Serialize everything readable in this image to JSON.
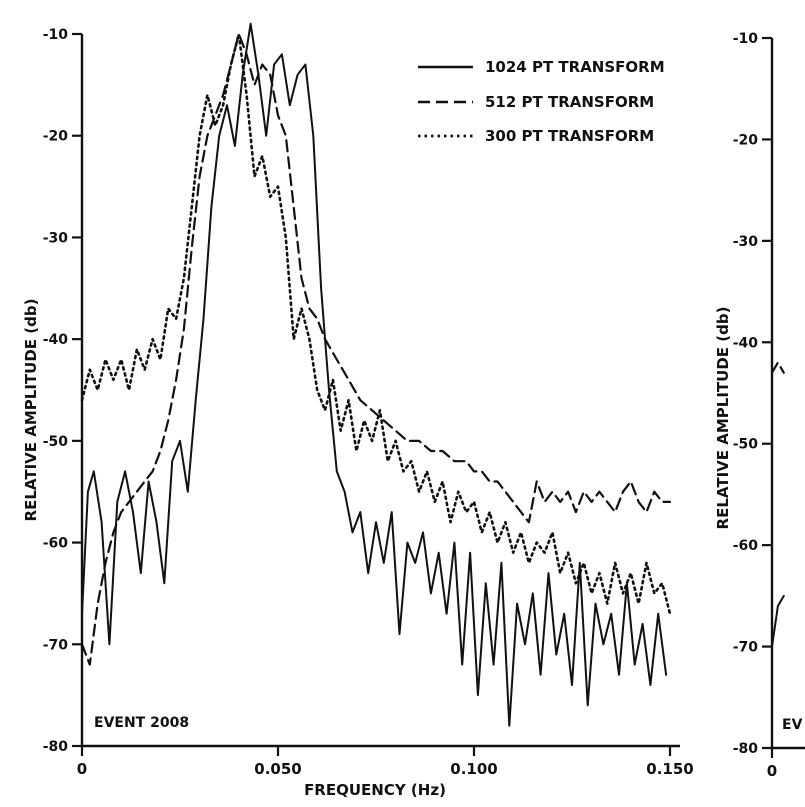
{
  "chart_data": [
    {
      "type": "line",
      "title": "",
      "xlabel": "FREQUENCY (Hz)",
      "ylabel": "RELATIVE AMPLITUDE (db)",
      "xlim": [
        0,
        0.15
      ],
      "ylim": [
        -80,
        -10
      ],
      "x_ticks": [
        "0",
        "0.050",
        "0.100",
        "0.150"
      ],
      "y_ticks": [
        "-10",
        "-20",
        "-30",
        "-40",
        "-50",
        "-60",
        "-70",
        "-80"
      ],
      "annotation": "EVENT 2008",
      "legend": {
        "position": "top-right",
        "entries": [
          "1024 PT TRANSFORM",
          "512 PT TRANSFORM",
          "300 PT TRANSFORM"
        ]
      },
      "series": [
        {
          "name": "1024 PT TRANSFORM",
          "style": "solid",
          "x": [
            0.0,
            0.0015,
            0.003,
            0.005,
            0.007,
            0.009,
            0.011,
            0.013,
            0.015,
            0.017,
            0.019,
            0.021,
            0.023,
            0.025,
            0.027,
            0.029,
            0.031,
            0.033,
            0.035,
            0.037,
            0.039,
            0.041,
            0.043,
            0.045,
            0.047,
            0.049,
            0.051,
            0.053,
            0.055,
            0.057,
            0.059,
            0.061,
            0.063,
            0.065,
            0.067,
            0.069,
            0.071,
            0.073,
            0.075,
            0.077,
            0.079,
            0.081,
            0.083,
            0.085,
            0.087,
            0.089,
            0.091,
            0.093,
            0.095,
            0.097,
            0.099,
            0.101,
            0.103,
            0.105,
            0.107,
            0.109,
            0.111,
            0.113,
            0.115,
            0.117,
            0.119,
            0.121,
            0.123,
            0.125,
            0.127,
            0.129,
            0.131,
            0.133,
            0.135,
            0.137,
            0.139,
            0.141,
            0.143,
            0.145,
            0.147,
            0.149
          ],
          "y": [
            -67,
            -55,
            -53,
            -58,
            -70,
            -56,
            -53,
            -57,
            -63,
            -54,
            -58,
            -64,
            -52,
            -50,
            -55,
            -46,
            -38,
            -27,
            -20,
            -17,
            -21,
            -14,
            -9,
            -14,
            -20,
            -13,
            -12,
            -17,
            -14,
            -13,
            -20,
            -35,
            -45,
            -53,
            -55,
            -59,
            -57,
            -63,
            -58,
            -62,
            -57,
            -69,
            -60,
            -62,
            -59,
            -65,
            -61,
            -67,
            -60,
            -72,
            -61,
            -75,
            -64,
            -72,
            -62,
            -78,
            -66,
            -70,
            -65,
            -73,
            -63,
            -71,
            -67,
            -74,
            -62,
            -76,
            -66,
            -70,
            -67,
            -73,
            -64,
            -72,
            -68,
            -74,
            -67,
            -73
          ]
        },
        {
          "name": "512 PT TRANSFORM",
          "style": "dashed",
          "x": [
            0.0,
            0.002,
            0.004,
            0.006,
            0.008,
            0.01,
            0.012,
            0.014,
            0.016,
            0.018,
            0.02,
            0.022,
            0.024,
            0.026,
            0.028,
            0.03,
            0.032,
            0.034,
            0.036,
            0.038,
            0.04,
            0.042,
            0.044,
            0.046,
            0.048,
            0.05,
            0.052,
            0.054,
            0.056,
            0.058,
            0.06,
            0.062,
            0.065,
            0.068,
            0.071,
            0.074,
            0.077,
            0.08,
            0.083,
            0.086,
            0.089,
            0.092,
            0.095,
            0.098,
            0.1,
            0.102,
            0.104,
            0.106,
            0.108,
            0.11,
            0.112,
            0.114,
            0.116,
            0.118,
            0.12,
            0.122,
            0.124,
            0.126,
            0.128,
            0.13,
            0.132,
            0.134,
            0.136,
            0.138,
            0.14,
            0.142,
            0.144,
            0.146,
            0.148,
            0.15
          ],
          "y": [
            -70,
            -72,
            -66,
            -62,
            -59,
            -57,
            -56,
            -55,
            -54,
            -53,
            -51,
            -48,
            -44,
            -39,
            -31,
            -24,
            -20,
            -18,
            -16,
            -13,
            -10,
            -12,
            -15,
            -13,
            -14,
            -18,
            -20,
            -27,
            -34,
            -37,
            -38,
            -40,
            -42,
            -44,
            -46,
            -47,
            -48,
            -49,
            -50,
            -50,
            -51,
            -51,
            -52,
            -52,
            -53,
            -53,
            -54,
            -54,
            -55,
            -56,
            -57,
            -58,
            -54,
            -56,
            -55,
            -56,
            -55,
            -57,
            -55,
            -56,
            -55,
            -56,
            -57,
            -55,
            -54,
            -56,
            -57,
            -55,
            -56,
            -56
          ]
        },
        {
          "name": "300 PT TRANSFORM",
          "style": "dotted",
          "x": [
            0.0,
            0.002,
            0.004,
            0.006,
            0.008,
            0.01,
            0.012,
            0.014,
            0.016,
            0.018,
            0.02,
            0.022,
            0.024,
            0.026,
            0.028,
            0.03,
            0.032,
            0.034,
            0.036,
            0.038,
            0.04,
            0.042,
            0.044,
            0.046,
            0.048,
            0.05,
            0.052,
            0.054,
            0.056,
            0.058,
            0.06,
            0.062,
            0.064,
            0.066,
            0.068,
            0.07,
            0.072,
            0.074,
            0.076,
            0.078,
            0.08,
            0.082,
            0.084,
            0.086,
            0.088,
            0.09,
            0.092,
            0.094,
            0.096,
            0.098,
            0.1,
            0.102,
            0.104,
            0.106,
            0.108,
            0.11,
            0.112,
            0.114,
            0.116,
            0.118,
            0.12,
            0.122,
            0.124,
            0.126,
            0.128,
            0.13,
            0.132,
            0.134,
            0.136,
            0.138,
            0.14,
            0.142,
            0.144,
            0.146,
            0.148,
            0.15
          ],
          "y": [
            -46,
            -43,
            -45,
            -42,
            -44,
            -42,
            -45,
            -41,
            -43,
            -40,
            -42,
            -37,
            -38,
            -34,
            -27,
            -20,
            -16,
            -19,
            -17,
            -13,
            -10,
            -16,
            -24,
            -22,
            -26,
            -25,
            -30,
            -40,
            -37,
            -40,
            -45,
            -47,
            -44,
            -49,
            -46,
            -51,
            -48,
            -50,
            -47,
            -52,
            -50,
            -53,
            -52,
            -55,
            -53,
            -56,
            -54,
            -58,
            -55,
            -57,
            -56,
            -59,
            -57,
            -60,
            -58,
            -61,
            -59,
            -62,
            -60,
            -61,
            -59,
            -63,
            -61,
            -64,
            -62,
            -65,
            -63,
            -66,
            -62,
            -65,
            -63,
            -66,
            -62,
            -65,
            -64,
            -67
          ]
        }
      ]
    },
    {
      "type": "line",
      "title": "",
      "xlabel": "",
      "ylabel": "RELATIVE AMPLITUDE (db)",
      "xlim": [
        0,
        0.15
      ],
      "ylim": [
        -80,
        -10
      ],
      "x_ticks": [
        "0"
      ],
      "y_ticks": [
        "-10",
        "-20",
        "-30",
        "-40",
        "-50",
        "-60",
        "-70",
        "-80"
      ],
      "annotation": "EV",
      "series": [
        {
          "style": "dashed",
          "x": [
            0.0,
            0.0015,
            0.003
          ],
          "y": [
            -43,
            -42,
            -43
          ]
        },
        {
          "style": "solid",
          "x": [
            0.0,
            0.0015,
            0.003
          ],
          "y": [
            -70,
            -66,
            -65
          ]
        }
      ]
    }
  ]
}
